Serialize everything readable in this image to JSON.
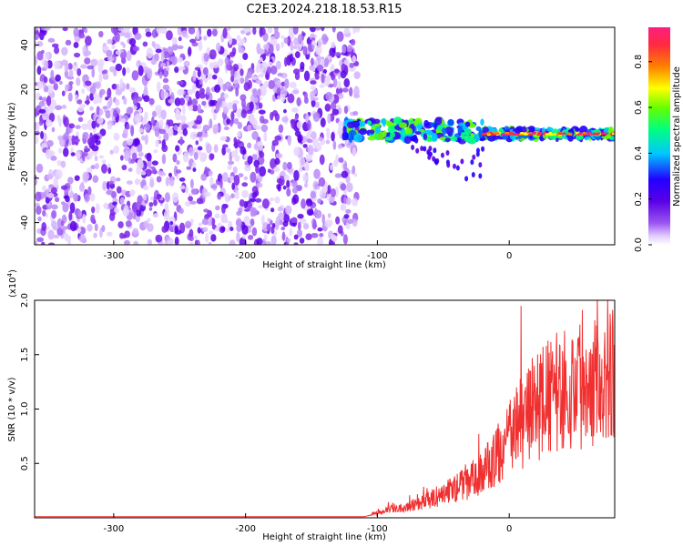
{
  "title": "C2E3.2024.218.18.53.R15",
  "chart_data": [
    {
      "type": "heatmap",
      "xlabel": "Height of straight line (km)",
      "ylabel": "Frequency (Hz)",
      "xlim": [
        -360,
        80
      ],
      "ylim": [
        -50,
        48
      ],
      "xticks": [
        -300,
        -200,
        -100,
        0
      ],
      "yticks": [
        -40,
        -20,
        0,
        20,
        40
      ],
      "colorbar": {
        "label": "Normalized spectral amplitude",
        "range": [
          0,
          0.95
        ],
        "ticks": [
          "0.0",
          "0.2",
          "0.4",
          "0.6",
          "0.8"
        ],
        "colors": [
          "#ffffff",
          "#e3ccff",
          "#9a55f0",
          "#5a00e6",
          "#2200ff",
          "#00c8ff",
          "#00ff80",
          "#66ff00",
          "#ffff00",
          "#ff8000",
          "#ff2a40",
          "#ff1e80"
        ]
      },
      "regions": [
        {
          "x": [
            -360,
            -115
          ],
          "freq_range": [
            -50,
            48
          ],
          "amplitude": 0.1
        },
        {
          "x": [
            -125,
            80
          ],
          "freq_center": 0,
          "freq_halfwidth": 3,
          "amplitude": 0.5
        },
        {
          "x": [
            -20,
            80
          ],
          "freq_center": 0,
          "amplitude": 0.9
        }
      ]
    },
    {
      "type": "line",
      "xlabel": "Height of straight line (km)",
      "ylabel": "SNR (10 * v/v)",
      "exponent": "(x10",
      "exponent_power": "4",
      "exponent_close": ")",
      "xlim": [
        -360,
        80
      ],
      "ylim": [
        0,
        2.0
      ],
      "xticks": [
        -300,
        -200,
        -100,
        0
      ],
      "yticks": [
        "0.5",
        "1.0",
        "1.5",
        "2.0"
      ],
      "color": "#f03030",
      "x": [
        -360,
        -300,
        -200,
        -110,
        -100,
        -90,
        -80,
        -70,
        -60,
        -50,
        -40,
        -30,
        -20,
        -10,
        0,
        10,
        20,
        30,
        40,
        50,
        60,
        70,
        80
      ],
      "y": [
        0.01,
        0.01,
        0.01,
        0.01,
        0.04,
        0.07,
        0.09,
        0.12,
        0.15,
        0.2,
        0.25,
        0.3,
        0.38,
        0.5,
        0.65,
        0.8,
        0.92,
        1.0,
        1.05,
        1.1,
        1.15,
        1.2,
        1.25
      ]
    }
  ]
}
